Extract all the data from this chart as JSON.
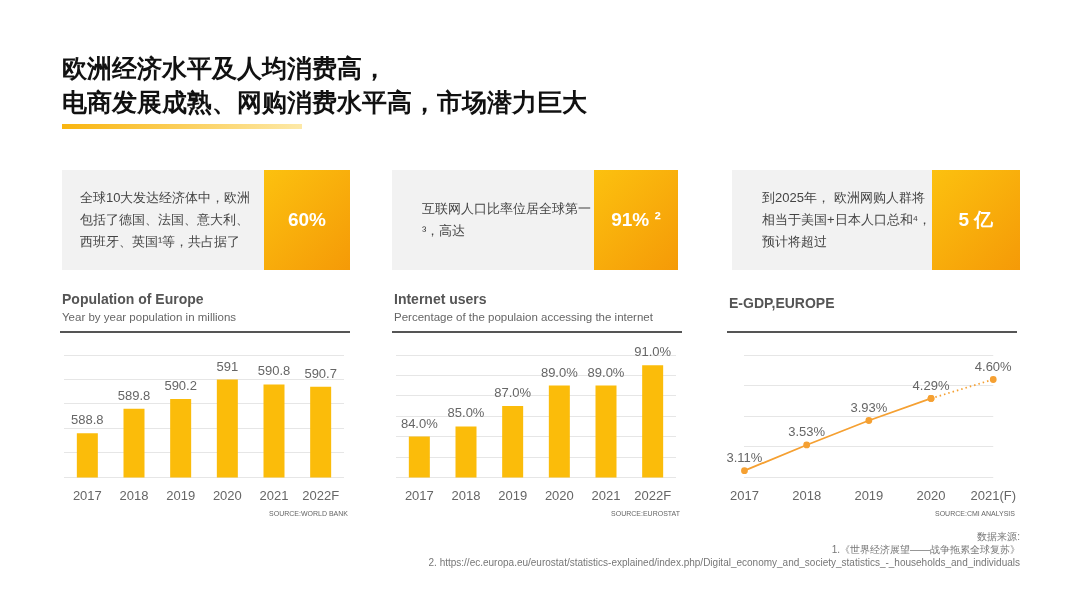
{
  "chart_data": [
    {
      "type": "other",
      "title": "欧洲经济水平及人均消费高，",
      "subtitle": "电商发展成熟、网购消费水平高，市场潜力巨大",
      "annotations": [
        "全球10大发达经济体中，欧洲包括了德国、法国、意大利、西班牙、英国¹等，共占据了",
        "60%",
        "互联网人口比率位居全球第一³，高达",
        "91% ²",
        "到2025年， 欧洲网购人群将相当于美国+日本人口总和⁴，预计将超过",
        "5 亿",
        "数据来源:\n1.《世界经济展望——战争拖累全球复苏》\n2. https://ec.europa.eu/eurostat/statistics-explained/index.php/Digital_economy_and_society_statistics_-_households_and_individuals"
      ]
    },
    {
      "type": "bar",
      "title": "Population of Europe",
      "subtitle": "Year by year population in millions",
      "annotations": [
        "SOURCE:WORLD BANK"
      ],
      "categories": [
        "2017",
        "2018",
        "2019",
        "2020",
        "2021",
        "2022F"
      ],
      "series": [
        {
          "color": "#fbbc0a",
          "values": [
            588.8,
            589.8,
            590.2,
            591,
            590.8,
            590.7
          ],
          "value_labels": [
            "588.8",
            "589.8",
            "590.2",
            "591",
            "590.8",
            "590.7"
          ]
        }
      ],
      "ylim": [
        587,
        592
      ],
      "yticks": [
        {
          "value": 587,
          "label": null
        },
        {
          "value": 588,
          "label": null
        },
        {
          "value": 589,
          "label": null
        },
        {
          "value": 590,
          "label": null
        },
        {
          "value": 591,
          "label": null
        },
        {
          "value": 592,
          "label": null
        }
      ],
      "grid": "y",
      "tick_labels": "x",
      "legend": false
    },
    {
      "type": "bar",
      "title": "Internet users",
      "subtitle": "Percentage of the populaion accessing the internet",
      "annotations": [
        "SOURCE:EUROSTAT"
      ],
      "categories": [
        "2017",
        "2018",
        "2019",
        "2020",
        "2021",
        "2022F"
      ],
      "series": [
        {
          "color": "#fbbc0a",
          "values": [
            84.0,
            85.0,
            87.0,
            89.0,
            89.0,
            91.0
          ],
          "value_labels": [
            "84.0%",
            "85.0%",
            "87.0%",
            "89.0%",
            "89.0%",
            "91.0%"
          ]
        }
      ],
      "ylim": [
        80,
        92
      ],
      "yticks": [
        {
          "value": 80,
          "label": null
        },
        {
          "value": 82,
          "label": null
        },
        {
          "value": 84,
          "label": null
        },
        {
          "value": 86,
          "label": null
        },
        {
          "value": 88,
          "label": null
        },
        {
          "value": 90,
          "label": null
        },
        {
          "value": 92,
          "label": null
        }
      ],
      "grid": "y",
      "tick_labels": "x",
      "legend": false
    },
    {
      "type": "line",
      "title": "E-GDP,EUROPE",
      "annotations": [
        "SOURCE:CMI ANALYSIS"
      ],
      "categories": [
        "2017",
        "2018",
        "2019",
        "2020",
        "2021(F)"
      ],
      "series": [
        {
          "color": "#f5a032",
          "line_style": "solid",
          "values": [
            3.11,
            3.53,
            3.93,
            4.29,
            null
          ],
          "value_labels": [
            "3.11%",
            "3.53%",
            "3.93%",
            "4.29%",
            null
          ]
        },
        {
          "color": "#f5a032",
          "line_style": "dotted",
          "values": [
            null,
            null,
            null,
            4.29,
            4.6
          ],
          "value_labels": [
            null,
            null,
            null,
            null,
            "4.60%"
          ]
        }
      ],
      "ylim": [
        3,
        5
      ],
      "yticks": [
        {
          "value": 3,
          "label": null
        },
        {
          "value": 3.5,
          "label": null
        },
        {
          "value": 4,
          "label": null
        },
        {
          "value": 4.5,
          "label": null
        },
        {
          "value": 5,
          "label": null
        }
      ],
      "grid": "y",
      "tick_labels": "x",
      "legend": false,
      "marker": "circle"
    }
  ]
}
